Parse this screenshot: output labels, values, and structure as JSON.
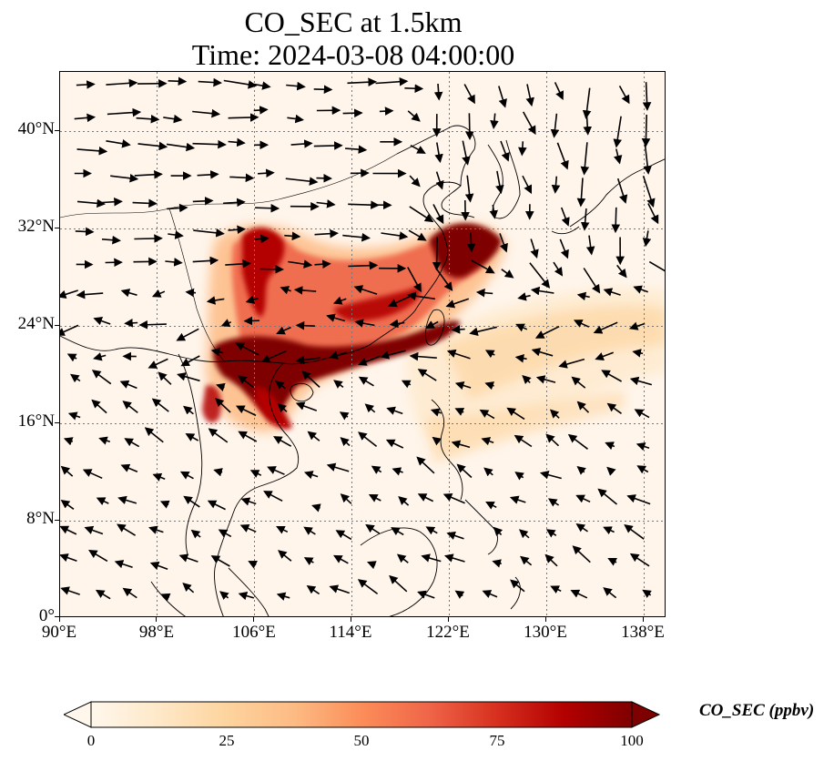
{
  "title_line1": "CO_SEC at 1.5km",
  "title_line2": "Time: 2024-03-08 04:00:00",
  "map": {
    "lon_range": [
      90,
      139
    ],
    "lat_range": [
      0,
      44
    ],
    "lon_ticks": [
      "90°E",
      "98°E",
      "106°E",
      "114°E",
      "122°E",
      "130°E",
      "138°E"
    ],
    "lat_ticks": [
      "0°",
      "8°N",
      "16°N",
      "24°N",
      "32°N",
      "40°N"
    ],
    "gridlines": true,
    "background_color": "#fff5eb",
    "coastline_color": "#000000",
    "wind_vector_color": "#000000"
  },
  "colorbar": {
    "label": "CO_SEC (ppbv)",
    "ticks": [
      "0",
      "25",
      "50",
      "75",
      "100"
    ],
    "min": 0,
    "max": 100,
    "colormap": "OrRd",
    "extend": "both",
    "colors": [
      "#fff7ec",
      "#fee8c8",
      "#fdd49e",
      "#fdbb84",
      "#fc8d59",
      "#ef6548",
      "#d7301f",
      "#b30000",
      "#7f0000"
    ]
  }
}
